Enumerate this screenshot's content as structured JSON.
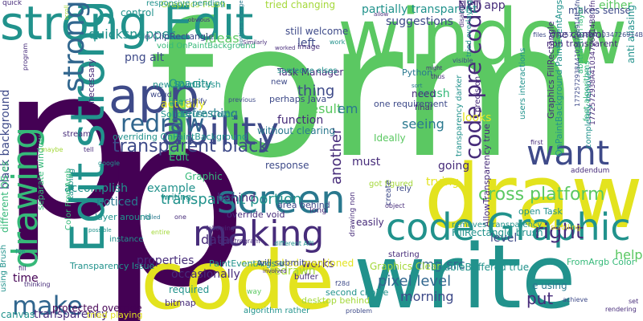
{
  "palette": {
    "yellow": "#e3e31e",
    "lime": "#a4d83a",
    "green": "#5bc862",
    "bright_green": "#36b979",
    "teal": "#21928c",
    "cyan": "#29788e",
    "blue": "#31668e",
    "indigo": "#3e4a89",
    "violet": "#472c7a",
    "purple": "#440154"
  },
  "words": [
    {
      "text": "p",
      "color": "purple"
    },
    {
      "text": "p",
      "color": "purple"
    },
    {
      "text": "form",
      "color": "green"
    },
    {
      "text": "write",
      "color": "teal"
    },
    {
      "text": "code",
      "color": "yellow"
    },
    {
      "text": "draw",
      "color": "yellow"
    },
    {
      "text": "window",
      "color": "green"
    },
    {
      "text": "strong Edit",
      "color": "teal"
    },
    {
      "text": "Edit strong",
      "color": "teal"
    },
    {
      "text": "app",
      "color": "indigo"
    },
    {
      "text": "ability",
      "color": "indigo"
    },
    {
      "text": "screen",
      "color": "cyan"
    },
    {
      "text": "want",
      "color": "indigo"
    },
    {
      "text": "code Graphic",
      "color": "teal"
    },
    {
      "text": "making",
      "color": "violet"
    },
    {
      "text": "redraw",
      "color": "blue"
    },
    {
      "text": "drawing",
      "color": "bright_green"
    },
    {
      "text": "strong",
      "color": "blue"
    },
    {
      "text": "make",
      "color": "blue"
    },
    {
      "text": "transparent black",
      "color": "indigo"
    },
    {
      "text": "code pre code",
      "color": "violet"
    },
    {
      "text": "cross platform",
      "color": "green"
    },
    {
      "text": "transparent portion",
      "color": "teal"
    },
    {
      "text": "pixel level",
      "color": "blue"
    },
    {
      "text": "img src",
      "color": "blue"
    },
    {
      "text": "morning",
      "color": "indigo"
    },
    {
      "text": "right",
      "color": "violet"
    },
    {
      "text": "help",
      "color": "green"
    },
    {
      "text": "put",
      "color": "violet"
    },
    {
      "text": "suggestions",
      "color": "indigo"
    },
    {
      "text": "partially transparent",
      "color": "teal"
    },
    {
      "text": "either",
      "color": "green"
    },
    {
      "text": "NET app",
      "color": "violet"
    },
    {
      "text": "quicksnapper",
      "color": "teal"
    },
    {
      "text": "control",
      "color": "teal"
    },
    {
      "text": "ideas",
      "color": "green"
    },
    {
      "text": "Opacity",
      "color": "teal"
    },
    {
      "text": "refreshing",
      "color": "cyan"
    },
    {
      "text": "thing",
      "color": "indigo"
    },
    {
      "text": "actually",
      "color": "yellow"
    },
    {
      "text": "another",
      "color": "violet"
    },
    {
      "text": "brush",
      "color": "bright_green"
    },
    {
      "text": "result",
      "color": "green"
    },
    {
      "text": "function",
      "color": "violet"
    },
    {
      "text": "em",
      "color": "cyan"
    },
    {
      "text": "seeing",
      "color": "cyan"
    },
    {
      "text": "must",
      "color": "violet"
    },
    {
      "text": "looks",
      "color": "yellow"
    },
    {
      "text": "going",
      "color": "violet"
    },
    {
      "text": "level",
      "color": "indigo"
    },
    {
      "text": "trying",
      "color": "yellow"
    },
    {
      "text": "works",
      "color": "violet"
    },
    {
      "text": "data",
      "color": "violet"
    },
    {
      "text": "time",
      "color": "purple"
    },
    {
      "text": "example",
      "color": "teal"
    },
    {
      "text": "accomplish",
      "color": "teal"
    },
    {
      "text": "noticed",
      "color": "cyan"
    },
    {
      "text": "properties",
      "color": "violet"
    },
    {
      "text": "occasionally",
      "color": "violet"
    },
    {
      "text": "redrawn",
      "color": "lime"
    },
    {
      "text": "response",
      "color": "indigo"
    },
    {
      "text": "behind",
      "color": "violet"
    },
    {
      "text": "transparency",
      "color": "violet"
    },
    {
      "text": "png alt",
      "color": "indigo"
    },
    {
      "text": "black background",
      "color": "indigo"
    },
    {
      "text": "Task Manager",
      "color": "violet"
    },
    {
      "text": "without clearing",
      "color": "cyan"
    },
    {
      "text": "Ideally",
      "color": "green"
    },
    {
      "text": "left",
      "color": "indigo"
    },
    {
      "text": "still welcome",
      "color": "indigo"
    },
    {
      "text": "SolidBrush Color",
      "color": "teal"
    },
    {
      "text": "overriding OnPaintBackground",
      "color": "teal"
    },
    {
      "text": "protected override",
      "color": "purple"
    },
    {
      "text": "different OS es",
      "color": "bright_green"
    },
    {
      "text": "Edit",
      "color": "bright_green"
    },
    {
      "text": "Graphic",
      "color": "bright_green"
    },
    {
      "text": "easily",
      "color": "violet"
    },
    {
      "text": "tried playing",
      "color": "yellow"
    },
    {
      "text": "canvas",
      "color": "teal"
    },
    {
      "text": "bitmap",
      "color": "violet"
    },
    {
      "text": "required",
      "color": "teal"
    },
    {
      "text": "desktop behind",
      "color": "lime"
    },
    {
      "text": "second choice",
      "color": "teal"
    },
    {
      "text": "overslacked mentioned",
      "color": "yellow"
    },
    {
      "text": "Graphics Clear",
      "color": "lime"
    },
    {
      "text": "DoubleBuffered true",
      "color": "teal"
    },
    {
      "text": "FillRectangle brush",
      "color": "teal"
    },
    {
      "text": "FromArgb Color",
      "color": "bright_green"
    },
    {
      "text": "AllowTransparency true",
      "color": "violet"
    },
    {
      "text": "e using",
      "color": "cyan"
    },
    {
      "text": "open Task",
      "color": "teal"
    },
    {
      "text": "Graphics FillRectangle",
      "color": "violet"
    },
    {
      "text": "OnPaintBackground PaintEventArgs",
      "color": "teal"
    },
    {
      "text": "tried changing",
      "color": "lime"
    },
    {
      "text": "makes sense",
      "color": "indigo"
    },
    {
      "text": "one control",
      "color": "violet"
    },
    {
      "text": "non transparent",
      "color": "violet"
    },
    {
      "text": "Graphics Flush",
      "color": "lime"
    },
    {
      "text": "e ClipRectangle",
      "color": "indigo"
    },
    {
      "text": "void OnPaintBackground",
      "color": "bright_green"
    },
    {
      "text": "new SolidBrush",
      "color": "teal"
    },
    {
      "text": "PaintEventArgs e",
      "color": "teal"
    },
    {
      "text": "will submit",
      "color": "indigo"
    },
    {
      "text": "area behind",
      "color": "indigo"
    },
    {
      "text": "layer around",
      "color": "teal"
    },
    {
      "text": "instance",
      "color": "teal"
    },
    {
      "text": "override void",
      "color": "violet"
    },
    {
      "text": "someone elses",
      "color": "teal"
    },
    {
      "text": "one requirement",
      "color": "indigo"
    },
    {
      "text": "Python",
      "color": "cyan"
    },
    {
      "text": "perhaps Java",
      "color": "indigo"
    },
    {
      "text": "need",
      "color": "violet"
    },
    {
      "text": "final",
      "color": "violet"
    },
    {
      "text": "users interactions",
      "color": "teal"
    },
    {
      "text": "precision",
      "color": "violet"
    },
    {
      "text": "fast algorithms",
      "color": "bright_green"
    },
    {
      "text": "completely removes",
      "color": "teal"
    },
    {
      "text": "abstraction layer",
      "color": "bright_green"
    },
    {
      "text": "transparency darker",
      "color": "teal"
    },
    {
      "text": "removes transparency",
      "color": "teal"
    },
    {
      "text": "anti aliasing",
      "color": "teal"
    },
    {
      "text": "tabbing",
      "color": "teal"
    },
    {
      "text": "separate window",
      "color": "bright_green"
    },
    {
      "text": "Transparency Issue",
      "color": "teal"
    },
    {
      "text": "using Brush",
      "color": "teal"
    },
    {
      "text": "Color FromArgb",
      "color": "bright_green"
    },
    {
      "text": "responsive pending",
      "color": "teal"
    },
    {
      "text": "quick",
      "color": "violet"
    },
    {
      "text": "stream",
      "color": "violet"
    },
    {
      "text": "necessary",
      "color": "violet"
    },
    {
      "text": "algorithm rather",
      "color": "teal"
    },
    {
      "text": "woud",
      "color": "indigo"
    },
    {
      "text": "new",
      "color": "indigo"
    },
    {
      "text": "line",
      "color": "teal"
    },
    {
      "text": "clarify",
      "color": "indigo"
    },
    {
      "text": "previous",
      "color": "indigo"
    },
    {
      "text": "image",
      "color": "violet"
    },
    {
      "text": "got figured",
      "color": "lime"
    },
    {
      "text": "create",
      "color": "indigo"
    },
    {
      "text": "rely",
      "color": "indigo"
    },
    {
      "text": "object",
      "color": "violet"
    },
    {
      "text": "long",
      "color": "violet"
    },
    {
      "text": "buffer",
      "color": "violet"
    },
    {
      "text": "starting",
      "color": "violet"
    },
    {
      "text": "writing",
      "color": "teal"
    },
    {
      "text": "addendum",
      "color": "violet"
    },
    {
      "text": "first",
      "color": "violet"
    },
    {
      "text": "problem",
      "color": "indigo"
    },
    {
      "text": "rendering",
      "color": "violet"
    },
    {
      "text": "achieve",
      "color": "indigo"
    },
    {
      "text": "spectrogram",
      "color": "violet"
    },
    {
      "text": "following",
      "color": "violet"
    },
    {
      "text": "thinking",
      "color": "violet"
    },
    {
      "text": "entire",
      "color": "lime"
    },
    {
      "text": "failed",
      "color": "cyan"
    },
    {
      "text": "possible",
      "color": "teal"
    },
    {
      "text": "Similarly",
      "color": "violet"
    },
    {
      "text": "worked",
      "color": "violet"
    },
    {
      "text": "involved",
      "color": "violet"
    },
    {
      "text": "obvious",
      "color": "violet"
    },
    {
      "text": "scroll",
      "color": "lime"
    },
    {
      "text": "sort",
      "color": "cyan"
    },
    {
      "text": "might",
      "color": "violet"
    },
    {
      "text": "program",
      "color": "violet"
    },
    {
      "text": "maybe",
      "color": "lime"
    },
    {
      "text": "fill",
      "color": "violet"
    },
    {
      "text": "file",
      "color": "teal"
    },
    {
      "text": "google",
      "color": "teal"
    },
    {
      "text": "tell",
      "color": "violet"
    },
    {
      "text": "way",
      "color": "green"
    },
    {
      "text": "allow",
      "color": "violet"
    },
    {
      "text": "different API",
      "color": "teal"
    },
    {
      "text": "drawing non",
      "color": "violet"
    },
    {
      "text": "portions change",
      "color": "cyan"
    },
    {
      "text": "1772572938A41034726914B 5fn",
      "color": "indigo"
    },
    {
      "text": "1772572938A41034726914B8.5fn",
      "color": "violet"
    },
    {
      "text": "files 1772572938A41034726914B",
      "color": "indigo"
    },
    {
      "text": "scrolling",
      "color": "yellow"
    },
    {
      "text": "tried overlaying",
      "color": "teal"
    },
    {
      "text": "disabled",
      "color": "violet"
    },
    {
      "text": "f28d",
      "color": "indigo"
    },
    {
      "text": "thus",
      "color": "violet"
    },
    {
      "text": "visible",
      "color": "indigo"
    },
    {
      "text": "one",
      "color": "violet"
    },
    {
      "text": "work",
      "color": "teal"
    },
    {
      "text": "set",
      "color": "violet"
    }
  ]
}
